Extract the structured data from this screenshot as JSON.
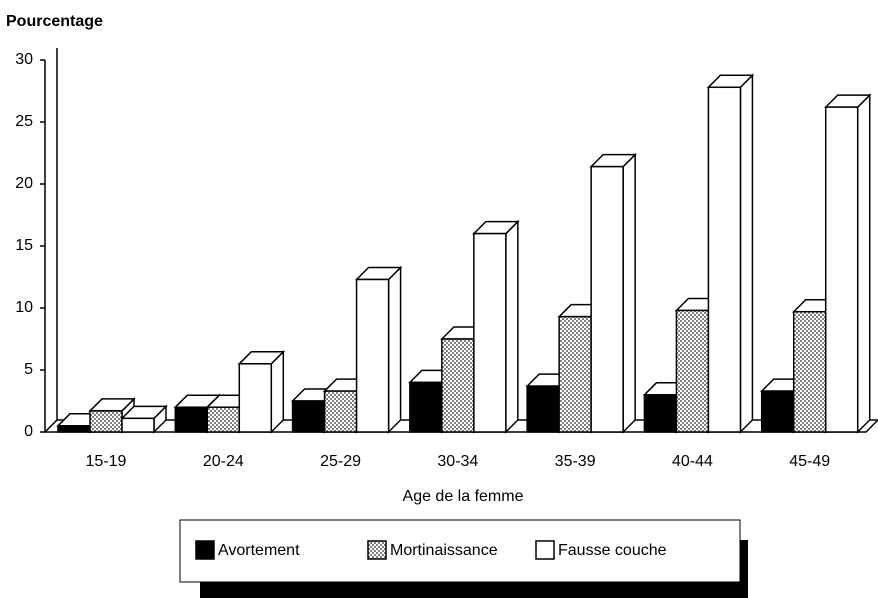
{
  "chart_data": {
    "type": "bar",
    "three_d": true,
    "y_label": "Pourcentage",
    "x_label": "Age de la femme",
    "categories": [
      "15-19",
      "20-24",
      "25-29",
      "30-34",
      "35-39",
      "40-44",
      "45-49"
    ],
    "series": [
      {
        "name": "Avortement",
        "color": "#000000",
        "values": [
          0.5,
          2,
          2.5,
          4,
          3.7,
          3,
          3.3
        ]
      },
      {
        "name": "Mortinaissance",
        "color": "#808080",
        "pattern": "dots",
        "values": [
          1.7,
          2,
          3.3,
          7.5,
          9.3,
          9.8,
          9.7
        ]
      },
      {
        "name": "Fausse couche",
        "color": "#ffffff",
        "values": [
          1.1,
          5.5,
          12.3,
          16,
          21.4,
          27.8,
          26.2
        ]
      }
    ],
    "ylim": [
      0,
      30
    ],
    "yticks": [
      0,
      5,
      10,
      15,
      20,
      25,
      30
    ],
    "grid": false,
    "legend": "bottom"
  }
}
